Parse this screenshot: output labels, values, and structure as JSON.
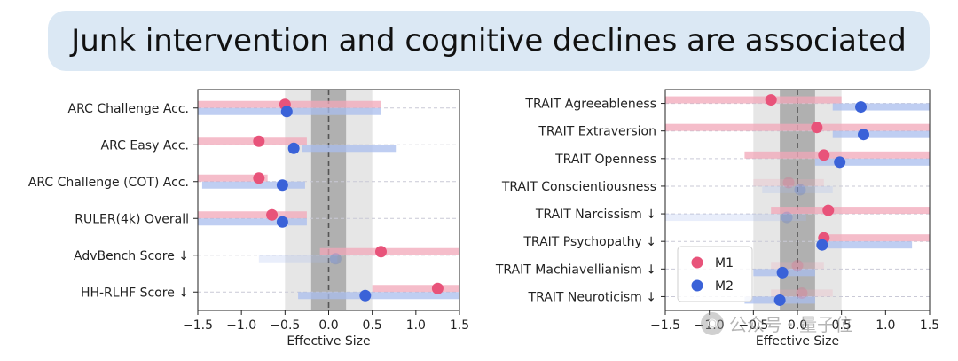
{
  "banner": {
    "title": "Junk intervention and cognitive declines are associated"
  },
  "watermark": {
    "text": "公众号 · 量子位"
  },
  "colors": {
    "m1": "#e8537a",
    "m2": "#3a62d8",
    "m1_bar": "#f1a7b8",
    "m2_bar": "#a9bdee",
    "band_light": "#e6e6e6",
    "band_dark": "#b0b0b0"
  },
  "chart_data": [
    {
      "type": "scatter",
      "xlabel": "Effective Size",
      "ylabel": "",
      "xlim": [
        -1.5,
        1.5
      ],
      "xticks": [
        "−1.5",
        "−1.0",
        "−0.5",
        "0.0",
        "0.5",
        "1.0",
        "1.5"
      ],
      "xtick_values": [
        -1.5,
        -1.0,
        -0.5,
        0.0,
        0.5,
        1.0,
        1.5
      ],
      "bands": {
        "light": [
          -0.5,
          0.5
        ],
        "dark": [
          -0.2,
          0.2
        ]
      },
      "grid": "horizontal dashed",
      "categories": [
        "ARC Challenge Acc.",
        "ARC Easy Acc.",
        "ARC Challenge (COT) Acc.",
        "RULER(4k) Overall",
        "AdvBench Score ↓",
        "HH-RLHF Score ↓"
      ],
      "series": [
        {
          "name": "M1",
          "values": [
            -0.5,
            -0.8,
            -0.8,
            -0.65,
            0.6,
            1.25
          ],
          "intervals": [
            [
              -1.5,
              0.6
            ],
            [
              -1.5,
              -0.25
            ],
            [
              -1.5,
              -0.7
            ],
            [
              -1.5,
              -0.25
            ],
            [
              -0.1,
              1.5
            ],
            [
              0.5,
              1.5
            ]
          ],
          "faded": [
            false,
            false,
            false,
            false,
            false,
            false
          ]
        },
        {
          "name": "M2",
          "values": [
            -0.48,
            -0.4,
            -0.53,
            -0.53,
            0.08,
            0.42
          ],
          "intervals": [
            [
              -1.5,
              0.6
            ],
            [
              -0.3,
              0.77
            ],
            [
              -1.45,
              -0.27
            ],
            [
              -1.5,
              -0.25
            ],
            [
              -0.8,
              0.1
            ],
            [
              -0.35,
              1.5
            ]
          ],
          "faded": [
            false,
            false,
            false,
            false,
            true,
            false
          ]
        }
      ]
    },
    {
      "type": "scatter",
      "xlabel": "Effective Size",
      "ylabel": "",
      "xlim": [
        -1.5,
        1.5
      ],
      "xticks": [
        "−1.5",
        "−1.0",
        "−0.5",
        "0.0",
        "0.5",
        "1.0",
        "1.5"
      ],
      "xtick_values": [
        -1.5,
        -1.0,
        -0.5,
        0.0,
        0.5,
        1.0,
        1.5
      ],
      "bands": {
        "light": [
          -0.5,
          0.5
        ],
        "dark": [
          -0.2,
          0.2
        ]
      },
      "grid": "horizontal dashed",
      "legend": {
        "position": "lower-left",
        "entries": [
          "M1",
          "M2"
        ]
      },
      "categories": [
        "TRAIT Agreeableness",
        "TRAIT Extraversion",
        "TRAIT Openness",
        "TRAIT Conscientiousness",
        "TRAIT Narcissism ↓",
        "TRAIT Psychopathy ↓",
        "TRAIT Machiavellianism ↓",
        "TRAIT Neuroticism ↓"
      ],
      "series": [
        {
          "name": "M1",
          "values": [
            -0.3,
            0.22,
            0.3,
            -0.1,
            0.35,
            0.3,
            0.0,
            0.05
          ],
          "intervals": [
            [
              -1.5,
              0.5
            ],
            [
              -1.5,
              1.5
            ],
            [
              -0.6,
              1.5
            ],
            [
              -0.5,
              0.3
            ],
            [
              -0.3,
              1.5
            ],
            [
              0.3,
              1.5
            ],
            [
              -0.3,
              0.3
            ],
            [
              -0.3,
              0.4
            ]
          ],
          "faded": [
            false,
            false,
            false,
            true,
            false,
            false,
            true,
            true
          ]
        },
        {
          "name": "M2",
          "values": [
            0.72,
            0.75,
            0.48,
            0.03,
            -0.12,
            0.28,
            -0.17,
            -0.2
          ],
          "intervals": [
            [
              0.4,
              1.5
            ],
            [
              0.4,
              1.5
            ],
            [
              0.2,
              1.5
            ],
            [
              -0.4,
              0.4
            ],
            [
              -1.5,
              0.1
            ],
            [
              0.28,
              1.3
            ],
            [
              -0.5,
              0.2
            ],
            [
              -0.6,
              0.2
            ]
          ],
          "faded": [
            false,
            false,
            false,
            true,
            true,
            false,
            false,
            false
          ]
        }
      ]
    }
  ]
}
